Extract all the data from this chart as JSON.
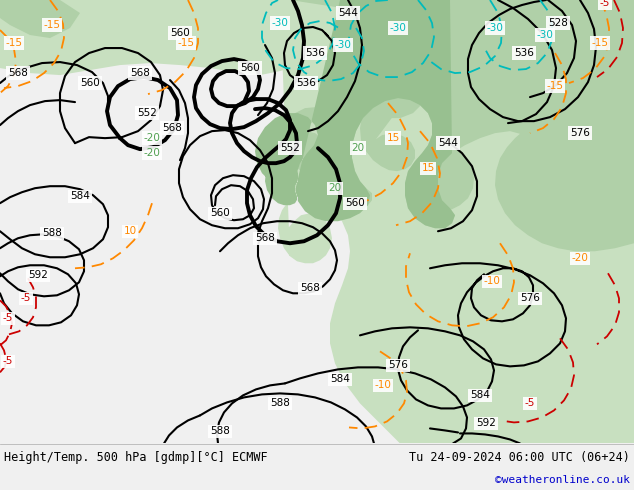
{
  "title_left": "Height/Temp. 500 hPa [gdmp][°C] ECMWF",
  "title_right": "Tu 24-09-2024 06:00 UTC (06+24)",
  "credit": "©weatheronline.co.uk",
  "figsize": [
    6.34,
    4.9
  ],
  "dpi": 100,
  "bg_color": "#e0e0e0",
  "land_green_light": "#c8e0c0",
  "land_green_mid": "#b0d0a8",
  "land_green_dark": "#98c090",
  "bottom_bar_color": "#f0f0f0",
  "credit_color": "#0000cc",
  "orange_color": "#ff8800",
  "red_color": "#cc0000",
  "cyan_color": "#00bbbb",
  "black_color": "#000000"
}
